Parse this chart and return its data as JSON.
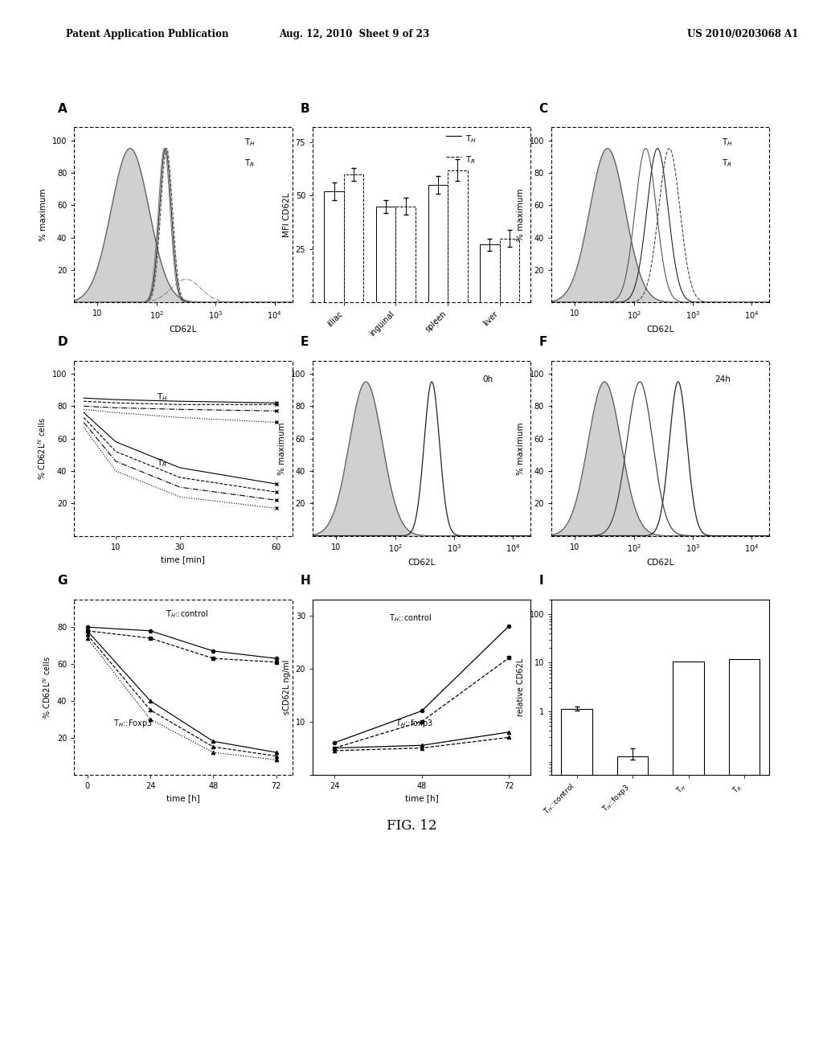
{
  "header_left": "Patent Application Publication",
  "header_mid": "Aug. 12, 2010  Sheet 9 of 23",
  "header_right": "US 2010/0203068 A1",
  "fig_label": "FIG. 12",
  "background": "#ffffff"
}
